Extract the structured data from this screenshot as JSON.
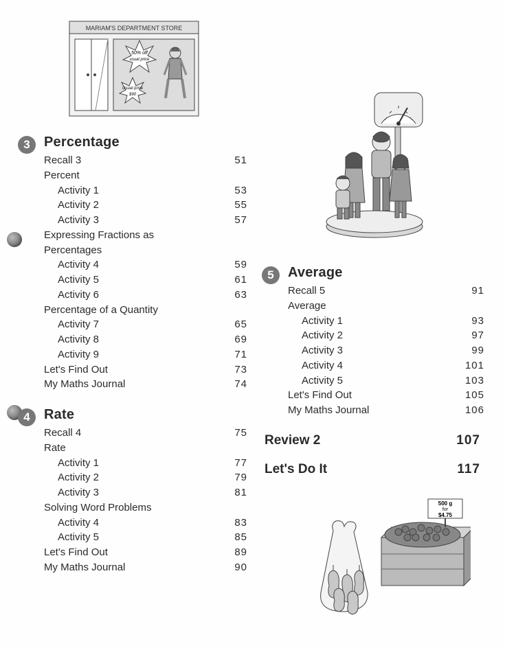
{
  "store": {
    "sign": "MARIAM'S DEPARTMENT STORE",
    "burst1a": "50% off",
    "burst1b": "usual price",
    "burst2a": "Usual price",
    "burst2b": "$90"
  },
  "priceSign": {
    "line1": "500 g",
    "line2": "for",
    "line3": "$4.75"
  },
  "chapters": [
    {
      "num": "3",
      "title": "Percentage",
      "rows": [
        {
          "t": "label",
          "text": "Recall 3",
          "pg": "51"
        },
        {
          "t": "sub",
          "text": "Percent"
        },
        {
          "t": "act",
          "text": "Activity 1",
          "pg": "53"
        },
        {
          "t": "act",
          "text": "Activity 2",
          "pg": "55"
        },
        {
          "t": "act",
          "text": "Activity 3",
          "pg": "57"
        },
        {
          "t": "sub",
          "text": "Expressing Fractions as"
        },
        {
          "t": "sub",
          "text": "Percentages"
        },
        {
          "t": "act",
          "text": "Activity 4",
          "pg": "59"
        },
        {
          "t": "act",
          "text": "Activity 5",
          "pg": "61"
        },
        {
          "t": "act",
          "text": "Activity 6",
          "pg": "63"
        },
        {
          "t": "sub",
          "text": "Percentage of a Quantity"
        },
        {
          "t": "act",
          "text": "Activity 7",
          "pg": "65"
        },
        {
          "t": "act",
          "text": "Activity 8",
          "pg": "69"
        },
        {
          "t": "act",
          "text": "Activity 9",
          "pg": "71"
        },
        {
          "t": "label",
          "text": "Let's Find Out",
          "pg": "73"
        },
        {
          "t": "label",
          "text": "My Maths Journal",
          "pg": "74"
        }
      ]
    },
    {
      "num": "4",
      "title": "Rate",
      "rows": [
        {
          "t": "label",
          "text": "Recall 4",
          "pg": "75"
        },
        {
          "t": "sub",
          "text": "Rate"
        },
        {
          "t": "act",
          "text": "Activity 1",
          "pg": "77"
        },
        {
          "t": "act",
          "text": "Activity 2",
          "pg": "79"
        },
        {
          "t": "act",
          "text": "Activity 3",
          "pg": "81"
        },
        {
          "t": "sub",
          "text": "Solving Word Problems"
        },
        {
          "t": "act",
          "text": "Activity 4",
          "pg": "83"
        },
        {
          "t": "act",
          "text": "Activity 5",
          "pg": "85"
        },
        {
          "t": "label",
          "text": "Let's Find Out",
          "pg": "89"
        },
        {
          "t": "label",
          "text": "My Maths Journal",
          "pg": "90"
        }
      ]
    },
    {
      "num": "5",
      "title": "Average",
      "rows": [
        {
          "t": "label",
          "text": "Recall 5",
          "pg": "91"
        },
        {
          "t": "sub",
          "text": "Average"
        },
        {
          "t": "act",
          "text": "Activity 1",
          "pg": "93"
        },
        {
          "t": "act",
          "text": "Activity 2",
          "pg": "97"
        },
        {
          "t": "act",
          "text": "Activity 3",
          "pg": "99"
        },
        {
          "t": "act",
          "text": "Activity 4",
          "pg": "101"
        },
        {
          "t": "act",
          "text": "Activity 5",
          "pg": "103"
        },
        {
          "t": "label",
          "text": "Let's Find Out",
          "pg": "105"
        },
        {
          "t": "label",
          "text": "My Maths Journal",
          "pg": "106"
        }
      ]
    }
  ],
  "extras": [
    {
      "label": "Review 2",
      "pg": "107"
    },
    {
      "label": "Let's Do It",
      "pg": "117"
    }
  ],
  "colors": {
    "badge": "#777777",
    "text": "#2a2a2a",
    "illusStroke": "#444444",
    "illusFillLight": "#e6e6e6",
    "illusFillMed": "#bdbdbd",
    "illusFillDark": "#8a8a8a"
  }
}
